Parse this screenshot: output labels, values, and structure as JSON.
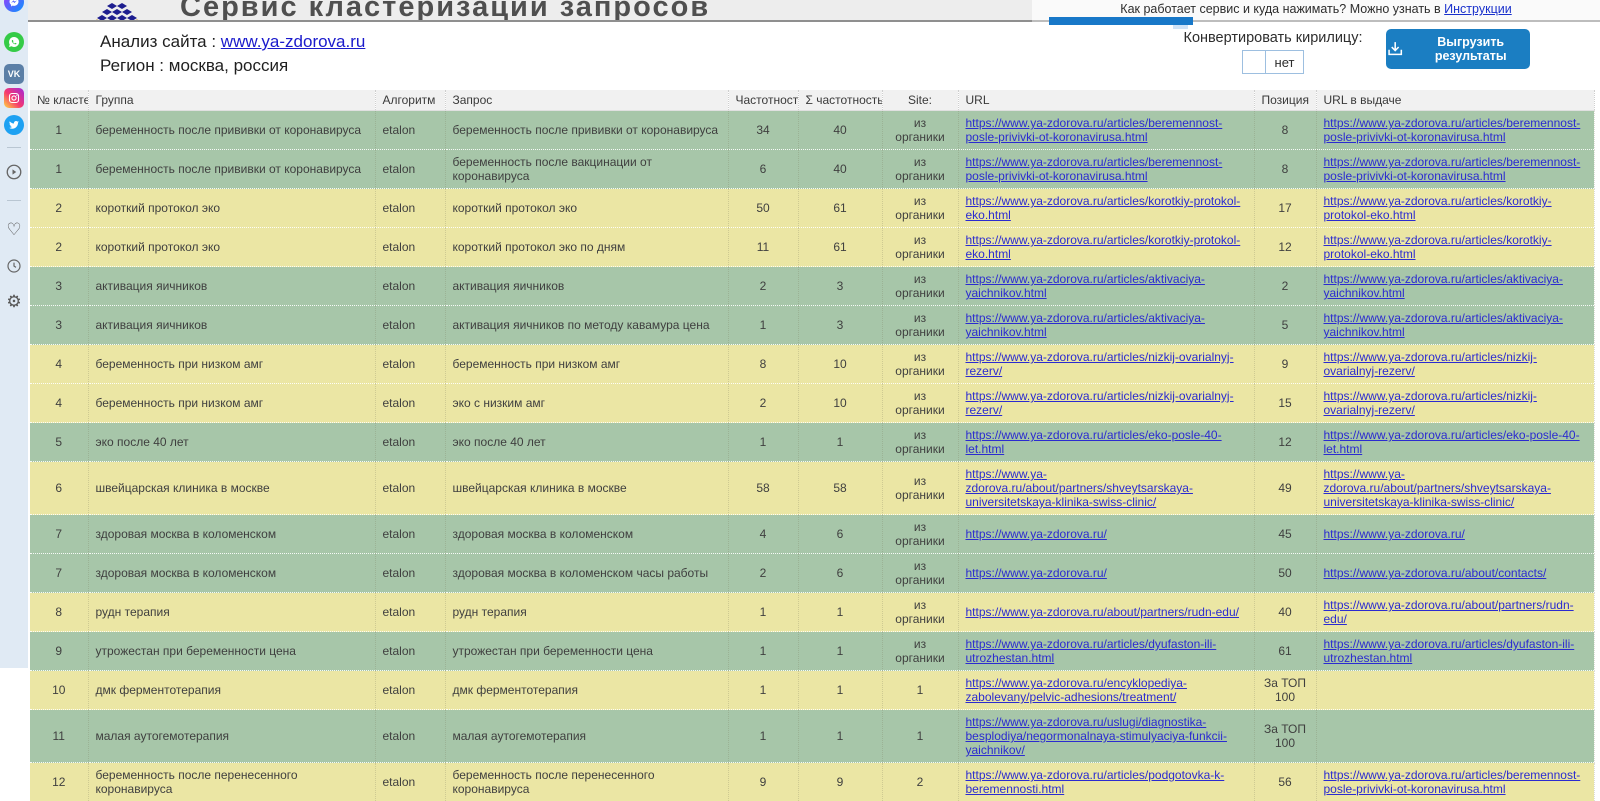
{
  "page": {
    "title": "Сервис кластеризации запросов",
    "help_text": "Как работает сервис и куда нажимать? Можно узнать в ",
    "help_link": "Инструкции",
    "analysis_label": "Анализ сайта : ",
    "analysis_url": "www.ya-zdorova.ru",
    "region_text": "Регион : москва, россия",
    "convert_label": "Конвертировать кирилицу:",
    "convert_value": "нет",
    "export_button_label": "Выгрузить результаты"
  },
  "colors": {
    "accent_blue": "#1b7ec2",
    "row_green": "#a7c6a9",
    "row_yellow": "#ebe6a4",
    "link_blue": "#2b2bd0",
    "sidebar_bg": "#e0eaf4"
  },
  "sidebar": {
    "icons": [
      "messenger-icon",
      "whatsapp-icon",
      "vk-icon",
      "instagram-icon",
      "twitter-icon",
      "play-circle-icon",
      "heart-icon",
      "clock-icon",
      "gear-icon"
    ]
  },
  "table": {
    "columns": [
      "№ кластер",
      "Группа",
      "Алгоритм",
      "Запрос",
      "Частотность",
      "Σ частотность",
      "Site:",
      "URL",
      "Позиция",
      "URL в выдаче"
    ],
    "rows": [
      {
        "cluster": 1,
        "group": "беременность после прививки от коронавируса",
        "algorithm": "etalon",
        "query": "беременность после прививки от коронавируса",
        "frequency": 34,
        "sum_frequency": 40,
        "site": "из органики",
        "url": "https://www.ya-zdorova.ru/articles/beremennost-posle-privivki-ot-koronavirusa.html",
        "position": "8",
        "serp_url": "https://www.ya-zdorova.ru/articles/beremennost-posle-privivki-ot-koronavirusa.html"
      },
      {
        "cluster": 1,
        "group": "беременность после прививки от коронавируса",
        "algorithm": "etalon",
        "query": "беременность после вакцинации от коронавируса",
        "frequency": 6,
        "sum_frequency": 40,
        "site": "из органики",
        "url": "https://www.ya-zdorova.ru/articles/beremennost-posle-privivki-ot-koronavirusa.html",
        "position": "8",
        "serp_url": "https://www.ya-zdorova.ru/articles/beremennost-posle-privivki-ot-koronavirusa.html"
      },
      {
        "cluster": 2,
        "group": "короткий протокол эко",
        "algorithm": "etalon",
        "query": "короткий протокол эко",
        "frequency": 50,
        "sum_frequency": 61,
        "site": "из органики",
        "url": "https://www.ya-zdorova.ru/articles/korotkiy-protokol-eko.html",
        "position": "17",
        "serp_url": "https://www.ya-zdorova.ru/articles/korotkiy-protokol-eko.html"
      },
      {
        "cluster": 2,
        "group": "короткий протокол эко",
        "algorithm": "etalon",
        "query": "короткий протокол эко по дням",
        "frequency": 11,
        "sum_frequency": 61,
        "site": "из органики",
        "url": "https://www.ya-zdorova.ru/articles/korotkiy-protokol-eko.html",
        "position": "12",
        "serp_url": "https://www.ya-zdorova.ru/articles/korotkiy-protokol-eko.html"
      },
      {
        "cluster": 3,
        "group": "активация яичников",
        "algorithm": "etalon",
        "query": "активация яичников",
        "frequency": 2,
        "sum_frequency": 3,
        "site": "из органики",
        "url": "https://www.ya-zdorova.ru/articles/aktivaciya-yaichnikov.html",
        "position": "2",
        "serp_url": "https://www.ya-zdorova.ru/articles/aktivaciya-yaichnikov.html"
      },
      {
        "cluster": 3,
        "group": "активация яичников",
        "algorithm": "etalon",
        "query": "активация яичников по методу кавамура цена",
        "frequency": 1,
        "sum_frequency": 3,
        "site": "из органики",
        "url": "https://www.ya-zdorova.ru/articles/aktivaciya-yaichnikov.html",
        "position": "5",
        "serp_url": "https://www.ya-zdorova.ru/articles/aktivaciya-yaichnikov.html"
      },
      {
        "cluster": 4,
        "group": "беременность при низком амг",
        "algorithm": "etalon",
        "query": "беременность при низком амг",
        "frequency": 8,
        "sum_frequency": 10,
        "site": "из органики",
        "url": "https://www.ya-zdorova.ru/articles/nizkij-ovarialnyj-rezerv/",
        "position": "9",
        "serp_url": "https://www.ya-zdorova.ru/articles/nizkij-ovarialnyj-rezerv/"
      },
      {
        "cluster": 4,
        "group": "беременность при низком амг",
        "algorithm": "etalon",
        "query": "эко с низким амг",
        "frequency": 2,
        "sum_frequency": 10,
        "site": "из органики",
        "url": "https://www.ya-zdorova.ru/articles/nizkij-ovarialnyj-rezerv/",
        "position": "15",
        "serp_url": "https://www.ya-zdorova.ru/articles/nizkij-ovarialnyj-rezerv/"
      },
      {
        "cluster": 5,
        "group": "эко после 40 лет",
        "algorithm": "etalon",
        "query": "эко после 40 лет",
        "frequency": 1,
        "sum_frequency": 1,
        "site": "из органики",
        "url": "https://www.ya-zdorova.ru/articles/eko-posle-40-let.html",
        "position": "12",
        "serp_url": "https://www.ya-zdorova.ru/articles/eko-posle-40-let.html"
      },
      {
        "cluster": 6,
        "group": "швейцарская клиника в москве",
        "algorithm": "etalon",
        "query": "швейцарская клиника в москве",
        "frequency": 58,
        "sum_frequency": 58,
        "site": "из органики",
        "url": "https://www.ya-zdorova.ru/about/partners/shveytsarskaya-universitetskaya-klinika-swiss-clinic/",
        "position": "49",
        "serp_url": "https://www.ya-zdorova.ru/about/partners/shveytsarskaya-universitetskaya-klinika-swiss-clinic/"
      },
      {
        "cluster": 7,
        "group": "здоровая москва в коломенском",
        "algorithm": "etalon",
        "query": "здоровая москва в коломенском",
        "frequency": 4,
        "sum_frequency": 6,
        "site": "из органики",
        "url": "https://www.ya-zdorova.ru/",
        "position": "45",
        "serp_url": "https://www.ya-zdorova.ru/"
      },
      {
        "cluster": 7,
        "group": "здоровая москва в коломенском",
        "algorithm": "etalon",
        "query": "здоровая москва в коломенском часы работы",
        "frequency": 2,
        "sum_frequency": 6,
        "site": "из органики",
        "url": "https://www.ya-zdorova.ru/",
        "position": "50",
        "serp_url": "https://www.ya-zdorova.ru/about/contacts/"
      },
      {
        "cluster": 8,
        "group": "рудн терапия",
        "algorithm": "etalon",
        "query": "рудн терапия",
        "frequency": 1,
        "sum_frequency": 1,
        "site": "из органики",
        "url": "https://www.ya-zdorova.ru/about/partners/rudn-edu/",
        "position": "40",
        "serp_url": "https://www.ya-zdorova.ru/about/partners/rudn-edu/"
      },
      {
        "cluster": 9,
        "group": "утрожестан при беременности цена",
        "algorithm": "etalon",
        "query": "утрожестан при беременности цена",
        "frequency": 1,
        "sum_frequency": 1,
        "site": "из органики",
        "url": "https://www.ya-zdorova.ru/articles/dyufaston-ili-utrozhestan.html",
        "position": "61",
        "serp_url": "https://www.ya-zdorova.ru/articles/dyufaston-ili-utrozhestan.html"
      },
      {
        "cluster": 10,
        "group": "дмк ферментотерапия",
        "algorithm": "etalon",
        "query": "дмк ферментотерапия",
        "frequency": 1,
        "sum_frequency": 1,
        "site": "1",
        "url": "https://www.ya-zdorova.ru/encyklopediya-zabolevany/pelvic-adhesions/treatment/",
        "position": "За ТОП 100",
        "serp_url": ""
      },
      {
        "cluster": 11,
        "group": "малая аутогемотерапия",
        "algorithm": "etalon",
        "query": "малая аутогемотерапия",
        "frequency": 1,
        "sum_frequency": 1,
        "site": "1",
        "url": "https://www.ya-zdorova.ru/uslugi/diagnostika-besplodiya/negormonalnaya-stimulyaciya-funkcii-yaichnikov/",
        "position": "За ТОП 100",
        "serp_url": ""
      },
      {
        "cluster": 12,
        "group": "беременность после перенесенного коронавируса",
        "algorithm": "etalon",
        "query": "беременность после перенесенного коронавируса",
        "frequency": 9,
        "sum_frequency": 9,
        "site": "2",
        "url": "https://www.ya-zdorova.ru/articles/podgotovka-k-beremennosti.html",
        "position": "56",
        "serp_url": "https://www.ya-zdorova.ru/articles/beremennost-posle-privivki-ot-koronavirusa.html"
      }
    ]
  }
}
